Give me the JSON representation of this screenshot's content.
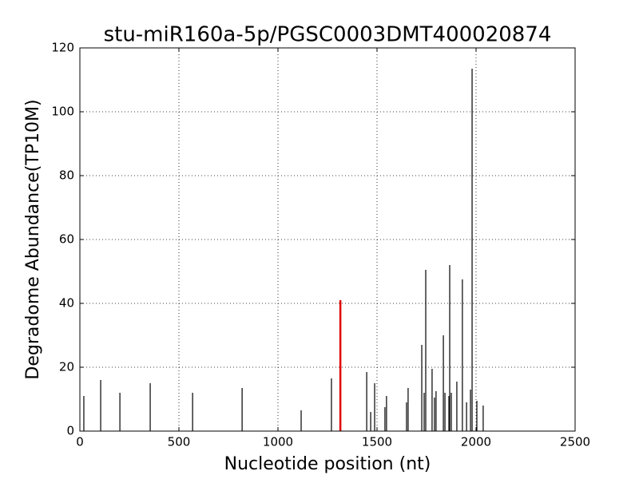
{
  "chart_data": {
    "type": "vlines",
    "title": "stu-miR160a-5p/PGSC0003DMT400020874",
    "x_label": "Nucleotide position (nt)",
    "y_label": "Degradome Abundance(TP10M)",
    "series": [
      {
        "color": "#000000",
        "x": [
          20,
          105,
          202,
          355,
          569,
          819,
          1117,
          1270,
          1448,
          1468,
          1488,
          1540,
          1548,
          1649,
          1657,
          1726,
          1738,
          1746,
          1778,
          1790,
          1798,
          1835,
          1843,
          1863,
          1867,
          1875,
          1903,
          1931,
          1952,
          1972,
          1980,
          2004,
          2036
        ],
        "values": [
          11,
          16,
          12,
          15,
          12,
          13.5,
          6.5,
          16.5,
          18.5,
          6,
          15,
          7.5,
          11,
          9,
          13.5,
          27,
          12,
          50.5,
          19.5,
          10.5,
          12.5,
          30,
          12,
          11,
          52,
          12,
          15.5,
          47.5,
          9,
          13,
          113.5,
          9.5,
          8
        ]
      },
      {
        "color": "#e00000",
        "x": [
          1315
        ],
        "values": [
          41
        ]
      }
    ],
    "xlim": [
      0,
      2500
    ],
    "xticks": [
      0,
      500,
      1000,
      1500,
      2000,
      2500
    ],
    "ylim": [
      0,
      120
    ],
    "yticks": [
      0,
      20,
      40,
      60,
      80,
      100,
      120
    ],
    "grid": true
  }
}
